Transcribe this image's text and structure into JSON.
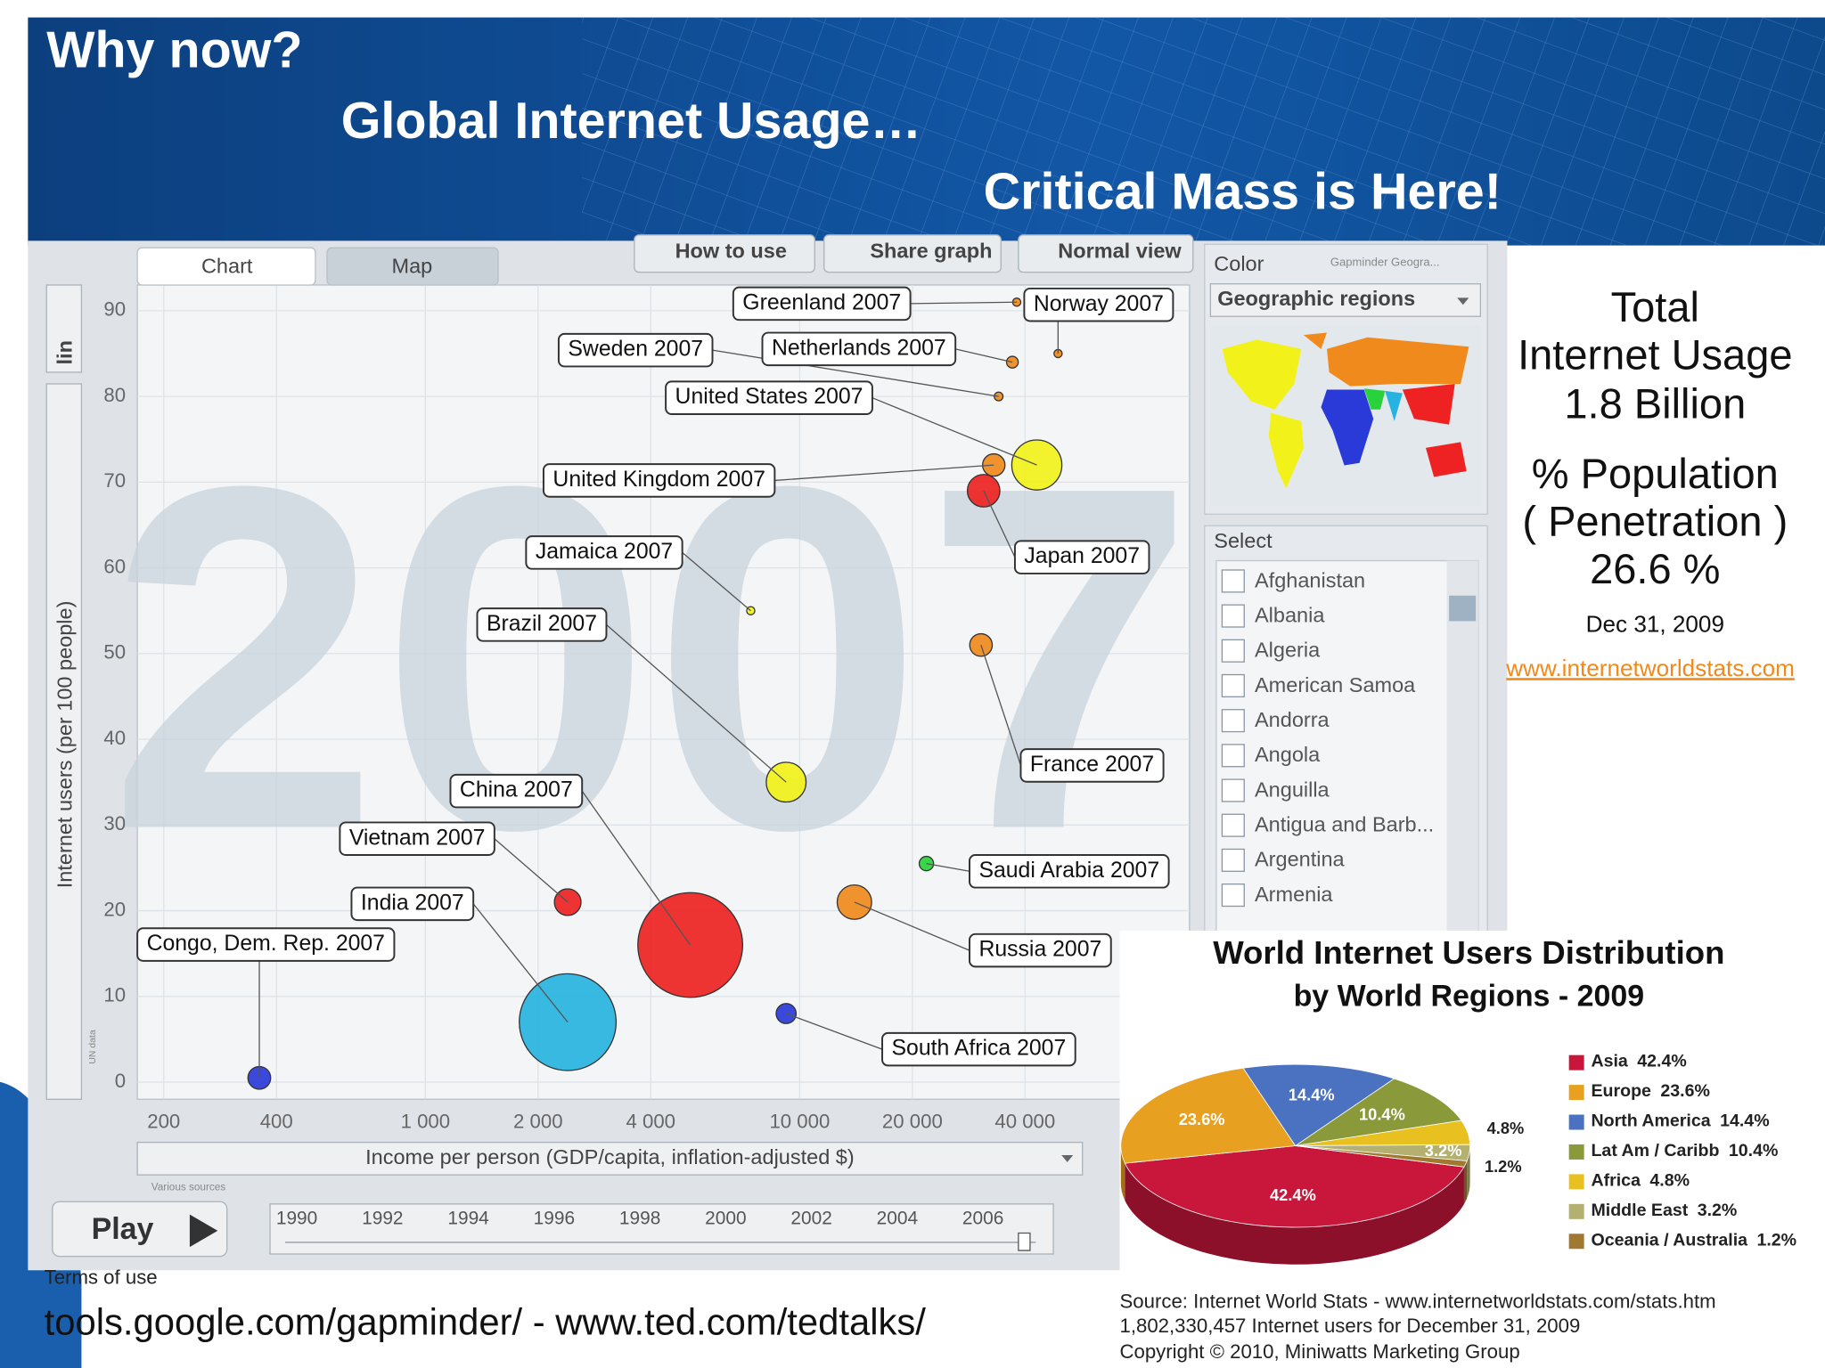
{
  "header": {
    "line1": "Why now?",
    "line2": "Global Internet Usage…",
    "line3": "Critical Mass is Here!"
  },
  "gapminder": {
    "tabs": [
      "Chart",
      "Map"
    ],
    "buttons": [
      "How to use",
      "Share graph",
      "Normal view"
    ],
    "y_scale_toggle": "lin",
    "color_panel": {
      "title": "Color",
      "source": "Gapminder Geogra...",
      "option": "Geographic regions"
    },
    "select_panel": {
      "title": "Select",
      "countries": [
        "Afghanistan",
        "Albania",
        "Algeria",
        "American Samoa",
        "Andorra",
        "Angola",
        "Anguilla",
        "Antigua and Barb...",
        "Argentina",
        "Armenia"
      ]
    },
    "un_note": "UN data",
    "source_note": "Various sources",
    "play": "Play",
    "timeline_years": [
      "1990",
      "1992",
      "1994",
      "1996",
      "1998",
      "2000",
      "2002",
      "2004",
      "2006"
    ],
    "terms": "Terms of use"
  },
  "chart_data": [
    {
      "type": "scatter",
      "year_label": "2007",
      "x_label": "Income per person (GDP/capita, inflation-adjusted $)",
      "y_label": "Internet users (per 100 people)",
      "categories": [
        "Greenland 2007",
        "Norway 2007",
        "Sweden 2007",
        "Netherlands 2007",
        "United States 2007",
        "United Kingdom 2007",
        "Japan 2007",
        "Jamaica 2007",
        "Brazil 2007",
        "France 2007",
        "China 2007",
        "Vietnam 2007",
        "India 2007",
        "Congo, Dem. Rep. 2007",
        "Saudi Arabia 2007",
        "Russia 2007",
        "South Africa 2007"
      ],
      "x": [
        38000,
        49000,
        34000,
        37000,
        43000,
        33000,
        31000,
        7400,
        9200,
        30500,
        5100,
        2400,
        2400,
        360,
        21800,
        14000,
        9200
      ],
      "values": [
        91,
        85,
        80,
        84,
        72,
        72,
        69,
        55,
        35,
        51,
        16,
        21,
        7,
        0.5,
        25.5,
        21,
        8
      ],
      "sizes": [
        0.06,
        4.7,
        9.1,
        16.4,
        301,
        60,
        127,
        2.7,
        190,
        61,
        1318,
        85,
        1125,
        62,
        24.7,
        142,
        48
      ],
      "colors": [
        "#f08a1c",
        "#f08a1c",
        "#f08a1c",
        "#f08a1c",
        "#f2f21a",
        "#f08a1c",
        "#ee2222",
        "#f2f21a",
        "#f2f21a",
        "#f08a1c",
        "#ee2222",
        "#ee2222",
        "#27b3e0",
        "#2a3ad8",
        "#29d23a",
        "#f08a1c",
        "#2a3ad8"
      ],
      "x_log": true,
      "xlim": [
        170,
        110000
      ],
      "xticks": [
        200,
        400,
        {
          "value": 1000,
          "label": "1 000"
        },
        {
          "value": 2000,
          "label": "2 000"
        },
        {
          "value": 4000,
          "label": "4 000"
        },
        {
          "value": 10000,
          "label": "10 000"
        },
        {
          "value": 20000,
          "label": "20 000"
        },
        {
          "value": 40000,
          "label": "40 000"
        }
      ],
      "ylim": [
        -2,
        93
      ],
      "yticks": [
        0,
        10,
        20,
        30,
        40,
        50,
        60,
        70,
        80,
        90
      ],
      "grid": true
    },
    {
      "type": "pie",
      "title": "World Internet Users Distribution",
      "subtitle": "by World Regions - 2009",
      "categories": [
        "Asia",
        "Europe",
        "North America",
        "Lat Am / Caribb",
        "Africa",
        "Middle East",
        "Oceania / Australia"
      ],
      "values": [
        42.4,
        23.6,
        14.4,
        10.4,
        4.8,
        3.2,
        1.2
      ],
      "value_labels": [
        "42.4%",
        "23.6%",
        "14.4%",
        "10.4%",
        "4.8%",
        "3.2%",
        "1.2%"
      ],
      "colors": [
        "#c8173a",
        "#e8a020",
        "#4a72c0",
        "#8a9a3a",
        "#e8c020",
        "#b4b070",
        "#a07830"
      ]
    }
  ],
  "stats": {
    "line1": "Total",
    "line2": "Internet Usage",
    "line3": "1.8 Billion",
    "line4": "% Population",
    "line5": "( Penetration )",
    "line6": "26.6  %",
    "date": "Dec 31, 2009",
    "link": "www.internetworldstats.com"
  },
  "footer": {
    "urls": "tools.google.com/gapminder/ - www.ted.com/tedtalks/",
    "source": "Source: Internet World Stats - www.internetworldstats.com/stats.htm",
    "users": "1,802,330,457 Internet users for December 31, 2009",
    "copyright": "Copyright © 2010, Miniwatts Marketing Group"
  }
}
